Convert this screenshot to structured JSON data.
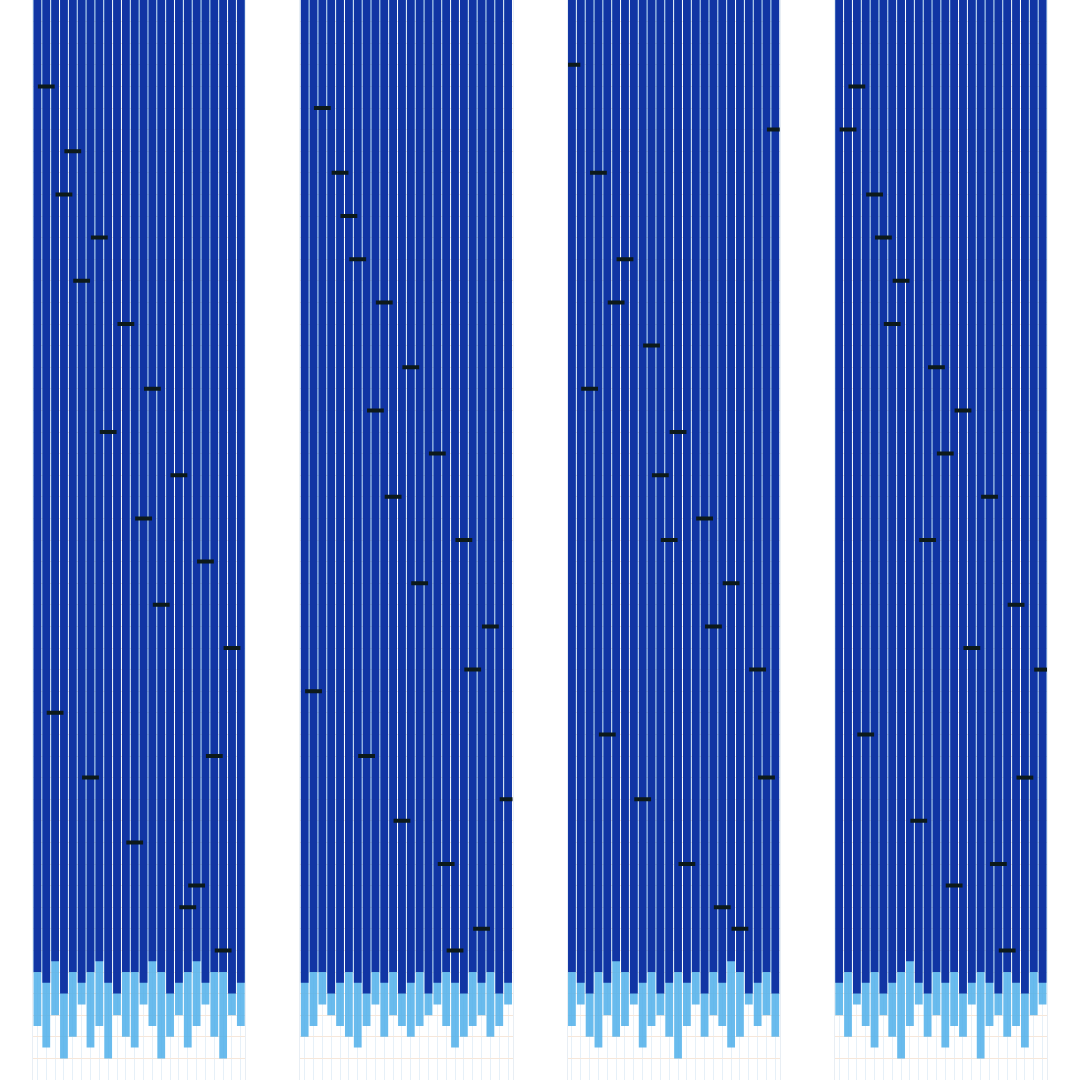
{
  "chart_data": [
    {
      "type": "bar",
      "tick_labels": false,
      "grid": true,
      "x": [
        1,
        2,
        3,
        4,
        5,
        6,
        7,
        8,
        9,
        10,
        11,
        12,
        13,
        14,
        15,
        16,
        17,
        18,
        19,
        20,
        21,
        22,
        23,
        24
      ],
      "xlim": [
        0.5,
        24.5
      ],
      "xticks": [
        1,
        2,
        3,
        4,
        5,
        6,
        7,
        8,
        9,
        10,
        11,
        12,
        13,
        14,
        15,
        16,
        17,
        18,
        19,
        20,
        21,
        22,
        23,
        24
      ],
      "ylim": [
        100,
        0
      ],
      "yticks": [
        0,
        2,
        4,
        6,
        8,
        10,
        12,
        14,
        16,
        18,
        20,
        22,
        24,
        26,
        28,
        30,
        32,
        34,
        36,
        38,
        40,
        42,
        44,
        46,
        48,
        50,
        52,
        54,
        56,
        58,
        60,
        62,
        64,
        66,
        68,
        70,
        72,
        74,
        76,
        78,
        80,
        82,
        84,
        86,
        88,
        90,
        92,
        94,
        96,
        98,
        100
      ],
      "series": [
        {
          "color": "#4fb0ea",
          "values": [
            95,
            97,
            94,
            98,
            96,
            93,
            97,
            95,
            98,
            94,
            96,
            97,
            93,
            95,
            98,
            96,
            94,
            97,
            95,
            93,
            96,
            98,
            94,
            95
          ]
        },
        {
          "color": "#0a2a9e",
          "values": [
            90,
            91,
            89,
            92,
            90,
            91,
            90,
            89,
            91,
            92,
            90,
            90,
            91,
            89,
            90,
            92,
            91,
            90,
            89,
            91,
            90,
            90,
            92,
            91
          ]
        },
        {
          "type": "scatter",
          "marker": "line-ew",
          "color": "#0d1a1a",
          "x": [
            2,
            5,
            8,
            11,
            14,
            17,
            20,
            23,
            3,
            7,
            12,
            18,
            22,
            4,
            9,
            15,
            21,
            6,
            13,
            19
          ],
          "values": [
            8,
            14,
            22,
            30,
            36,
            44,
            52,
            60,
            66,
            72,
            78,
            84,
            88,
            18,
            40,
            56,
            70,
            26,
            48,
            82
          ]
        }
      ]
    },
    {
      "type": "bar",
      "tick_labels": false,
      "grid": true,
      "x": [
        1,
        2,
        3,
        4,
        5,
        6,
        7,
        8,
        9,
        10,
        11,
        12,
        13,
        14,
        15,
        16,
        17,
        18,
        19,
        20,
        21,
        22,
        23,
        24
      ],
      "xlim": [
        0.5,
        24.5
      ],
      "xticks": [
        1,
        2,
        3,
        4,
        5,
        6,
        7,
        8,
        9,
        10,
        11,
        12,
        13,
        14,
        15,
        16,
        17,
        18,
        19,
        20,
        21,
        22,
        23,
        24
      ],
      "ylim": [
        100,
        0
      ],
      "yticks": [
        0,
        2,
        4,
        6,
        8,
        10,
        12,
        14,
        16,
        18,
        20,
        22,
        24,
        26,
        28,
        30,
        32,
        34,
        36,
        38,
        40,
        42,
        44,
        46,
        48,
        50,
        52,
        54,
        56,
        58,
        60,
        62,
        64,
        66,
        68,
        70,
        72,
        74,
        76,
        78,
        80,
        82,
        84,
        86,
        88,
        90,
        92,
        94,
        96,
        98,
        100
      ],
      "series": [
        {
          "color": "#4fb0ea",
          "values": [
            96,
            95,
            93,
            94,
            95,
            96,
            97,
            95,
            93,
            96,
            94,
            95,
            96,
            95,
            94,
            93,
            95,
            97,
            96,
            95,
            94,
            96,
            95,
            93
          ]
        },
        {
          "color": "#0a2a9e",
          "values": [
            91,
            90,
            90,
            92,
            91,
            90,
            91,
            92,
            90,
            91,
            90,
            92,
            91,
            90,
            92,
            91,
            90,
            91,
            92,
            90,
            91,
            90,
            92,
            91
          ]
        },
        {
          "type": "scatter",
          "marker": "line-ew",
          "color": "#0d1a1a",
          "x": [
            3,
            6,
            10,
            13,
            16,
            19,
            22,
            2,
            8,
            12,
            17,
            21,
            5,
            9,
            14,
            20,
            24,
            7,
            11,
            18
          ],
          "values": [
            10,
            20,
            28,
            34,
            42,
            50,
            58,
            64,
            70,
            76,
            80,
            86,
            16,
            38,
            54,
            62,
            74,
            24,
            46,
            88
          ]
        }
      ]
    },
    {
      "type": "bar",
      "tick_labels": false,
      "grid": true,
      "x": [
        1,
        2,
        3,
        4,
        5,
        6,
        7,
        8,
        9,
        10,
        11,
        12,
        13,
        14,
        15,
        16,
        17,
        18,
        19,
        20,
        21,
        22,
        23,
        24
      ],
      "xlim": [
        0.5,
        24.5
      ],
      "xticks": [
        1,
        2,
        3,
        4,
        5,
        6,
        7,
        8,
        9,
        10,
        11,
        12,
        13,
        14,
        15,
        16,
        17,
        18,
        19,
        20,
        21,
        22,
        23,
        24
      ],
      "ylim": [
        100,
        0
      ],
      "yticks": [
        0,
        2,
        4,
        6,
        8,
        10,
        12,
        14,
        16,
        18,
        20,
        22,
        24,
        26,
        28,
        30,
        32,
        34,
        36,
        38,
        40,
        42,
        44,
        46,
        48,
        50,
        52,
        54,
        56,
        58,
        60,
        62,
        64,
        66,
        68,
        70,
        72,
        74,
        76,
        78,
        80,
        82,
        84,
        86,
        88,
        90,
        92,
        94,
        96,
        98,
        100
      ],
      "series": [
        {
          "color": "#4fb0ea",
          "values": [
            95,
            93,
            96,
            97,
            94,
            96,
            95,
            93,
            97,
            95,
            94,
            96,
            98,
            95,
            93,
            96,
            94,
            95,
            97,
            96,
            93,
            95,
            94,
            96
          ]
        },
        {
          "color": "#0a2a9e",
          "values": [
            90,
            91,
            92,
            90,
            91,
            89,
            90,
            92,
            91,
            90,
            92,
            91,
            90,
            91,
            90,
            92,
            90,
            91,
            89,
            90,
            92,
            91,
            90,
            92
          ]
        },
        {
          "type": "scatter",
          "marker": "line-ew",
          "color": "#0d1a1a",
          "x": [
            1,
            4,
            7,
            10,
            13,
            16,
            19,
            22,
            5,
            9,
            14,
            20,
            24,
            3,
            11,
            17,
            23,
            6,
            12,
            18
          ],
          "values": [
            6,
            16,
            24,
            32,
            40,
            48,
            54,
            62,
            68,
            74,
            80,
            86,
            12,
            36,
            44,
            58,
            72,
            28,
            50,
            84
          ]
        }
      ]
    },
    {
      "type": "bar",
      "tick_labels": false,
      "grid": true,
      "x": [
        1,
        2,
        3,
        4,
        5,
        6,
        7,
        8,
        9,
        10,
        11,
        12,
        13,
        14,
        15,
        16,
        17,
        18,
        19,
        20,
        21,
        22,
        23,
        24
      ],
      "xlim": [
        0.5,
        24.5
      ],
      "xticks": [
        1,
        2,
        3,
        4,
        5,
        6,
        7,
        8,
        9,
        10,
        11,
        12,
        13,
        14,
        15,
        16,
        17,
        18,
        19,
        20,
        21,
        22,
        23,
        24
      ],
      "ylim": [
        100,
        0
      ],
      "yticks": [
        0,
        2,
        4,
        6,
        8,
        10,
        12,
        14,
        16,
        18,
        20,
        22,
        24,
        26,
        28,
        30,
        32,
        34,
        36,
        38,
        40,
        42,
        44,
        46,
        48,
        50,
        52,
        54,
        56,
        58,
        60,
        62,
        64,
        66,
        68,
        70,
        72,
        74,
        76,
        78,
        80,
        82,
        84,
        86,
        88,
        90,
        92,
        94,
        96,
        98,
        100
      ],
      "series": [
        {
          "color": "#4fb0ea",
          "values": [
            94,
            96,
            93,
            95,
            97,
            94,
            96,
            98,
            95,
            93,
            96,
            94,
            97,
            95,
            96,
            93,
            98,
            95,
            94,
            96,
            95,
            97,
            94,
            93
          ]
        },
        {
          "color": "#0a2a9e",
          "values": [
            91,
            90,
            92,
            91,
            90,
            92,
            91,
            90,
            89,
            91,
            92,
            90,
            91,
            90,
            92,
            91,
            90,
            91,
            92,
            90,
            91,
            92,
            90,
            91
          ]
        },
        {
          "type": "scatter",
          "marker": "line-ew",
          "color": "#0d1a1a",
          "x": [
            2,
            5,
            8,
            12,
            15,
            18,
            21,
            24,
            4,
            10,
            14,
            20,
            3,
            7,
            11,
            16,
            22,
            6,
            13,
            19
          ],
          "values": [
            12,
            18,
            26,
            34,
            38,
            46,
            56,
            62,
            68,
            76,
            82,
            88,
            8,
            30,
            50,
            60,
            72,
            22,
            42,
            80
          ]
        }
      ]
    }
  ]
}
